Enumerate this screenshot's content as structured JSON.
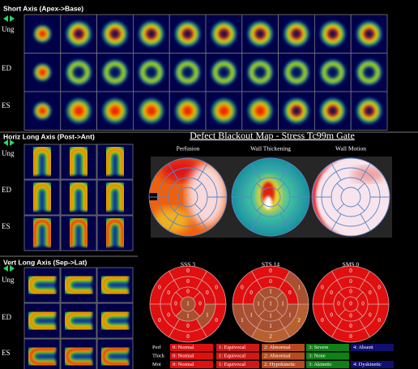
{
  "short_axis": {
    "title": "Short Axis (Apex->Base)",
    "row_labels": [
      "Ung",
      "ED",
      "ES"
    ]
  },
  "horiz_long_axis": {
    "title": "Horiz Long Axis (Post->Ant)",
    "row_labels": [
      "Ung",
      "ED",
      "ES"
    ]
  },
  "vert_long_axis": {
    "title": "Vert Long Axis (Sep->Lat)",
    "row_labels": [
      "Ung",
      "ED",
      "ES"
    ]
  },
  "defect_map": {
    "title": "Defect Blackout Map - Stress Tc99m Gate",
    "panels": [
      "Perfusion",
      "Wall Thickening",
      "Wall Motion"
    ]
  },
  "score_maps": [
    {
      "label": "SSS 3",
      "segments": [
        0,
        0,
        0,
        0,
        0,
        0,
        0,
        0,
        0,
        0,
        1,
        0,
        0,
        0,
        1,
        0,
        1
      ]
    },
    {
      "label": "STS 14",
      "segments": [
        0,
        0,
        1,
        2,
        2,
        1,
        0,
        0,
        1,
        1,
        1,
        0,
        1,
        1,
        1,
        1,
        1
      ]
    },
    {
      "label": "SMS 0",
      "segments": [
        0,
        0,
        0,
        0,
        0,
        0,
        0,
        0,
        0,
        0,
        0,
        0,
        0,
        0,
        0,
        0,
        0
      ]
    }
  ],
  "legend": {
    "rows": [
      {
        "label": "Perf",
        "items": [
          "0: Normal",
          "1: Equivocal",
          "2: Abnormal",
          "3: Severe",
          "4: Absent"
        ]
      },
      {
        "label": "Thick",
        "items": [
          "0: Normal",
          "1: Equivocal",
          "2: Abnormal",
          "3: None"
        ]
      },
      {
        "label": "Mot",
        "items": [
          "0: Normal",
          "1: Equivocal",
          "2: Hypokinetic",
          "3: Akinetic",
          "4: Dyskinetic"
        ]
      }
    ]
  }
}
